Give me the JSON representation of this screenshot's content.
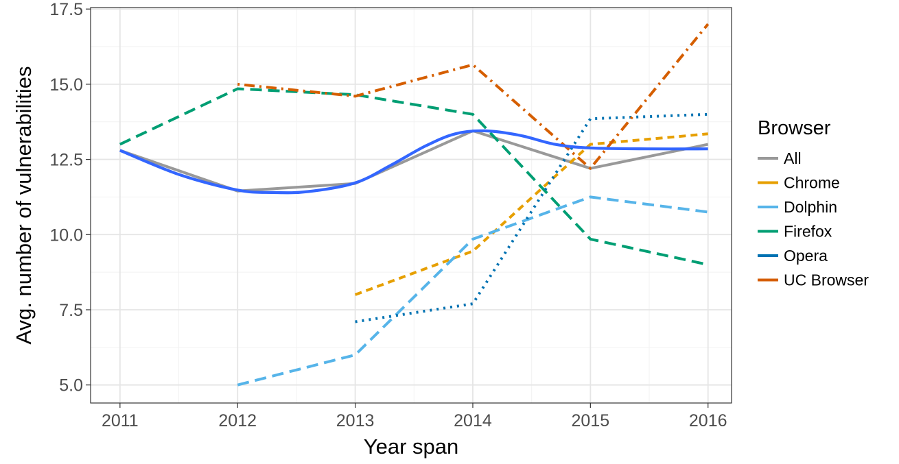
{
  "chart_data": {
    "type": "line",
    "xlabel": "Year span",
    "ylabel": "Avg. number of vulnerabilities",
    "x_ticks": [
      "2011",
      "2012",
      "2013",
      "2014",
      "2015",
      "2016"
    ],
    "y_ticks": [
      "5.0",
      "7.5",
      "10.0",
      "12.5",
      "15.0",
      "17.5"
    ],
    "xlim": [
      2010.75,
      2016.2
    ],
    "ylim": [
      4.4,
      17.55
    ],
    "grid": true,
    "legend": {
      "title": "Browser",
      "position": "right",
      "entries": [
        "All",
        "Chrome",
        "Dolphin",
        "Firefox",
        "Opera",
        "UC Browser"
      ]
    },
    "series": [
      {
        "name": "All",
        "color": "#999999",
        "dash": "solid",
        "x": [
          2011,
          2012,
          2013,
          2014,
          2015,
          2016
        ],
        "y": [
          12.8,
          11.45,
          11.7,
          13.45,
          12.2,
          13.0
        ]
      },
      {
        "name": "Chrome",
        "color": "#E69F00",
        "dash": "dashed",
        "x": [
          2013,
          2014,
          2015,
          2016
        ],
        "y": [
          8.0,
          9.45,
          13.0,
          13.35
        ]
      },
      {
        "name": "Dolphin",
        "color": "#56B4E9",
        "dash": "longdash",
        "x": [
          2012,
          2013,
          2014,
          2015,
          2016
        ],
        "y": [
          5.0,
          6.0,
          9.85,
          11.25,
          10.75
        ]
      },
      {
        "name": "Firefox",
        "color": "#009E73",
        "dash": "longdash",
        "x": [
          2011,
          2012,
          2013,
          2014,
          2015,
          2016
        ],
        "y": [
          13.0,
          14.85,
          14.65,
          14.0,
          9.85,
          9.0
        ]
      },
      {
        "name": "Opera",
        "color": "#0072B2",
        "dash": "dotted",
        "x": [
          2013,
          2014,
          2015,
          2016
        ],
        "y": [
          7.1,
          7.7,
          13.85,
          14.0
        ]
      },
      {
        "name": "UC Browser",
        "color": "#D55E00",
        "dash": "dotdash",
        "x": [
          2012,
          2013,
          2014,
          2015,
          2016
        ],
        "y": [
          15.0,
          14.6,
          15.65,
          12.2,
          17.0
        ]
      }
    ],
    "smooth": {
      "color": "#3366FF",
      "x": [
        2011,
        2011.5,
        2012,
        2012.3,
        2012.6,
        2013,
        2013.3,
        2013.6,
        2013.85,
        2014.1,
        2014.4,
        2014.7,
        2015,
        2015.5,
        2016
      ],
      "y": [
        12.8,
        12.0,
        11.48,
        11.4,
        11.43,
        11.72,
        12.3,
        12.95,
        13.35,
        13.45,
        13.3,
        13.0,
        12.88,
        12.85,
        12.85
      ]
    }
  }
}
